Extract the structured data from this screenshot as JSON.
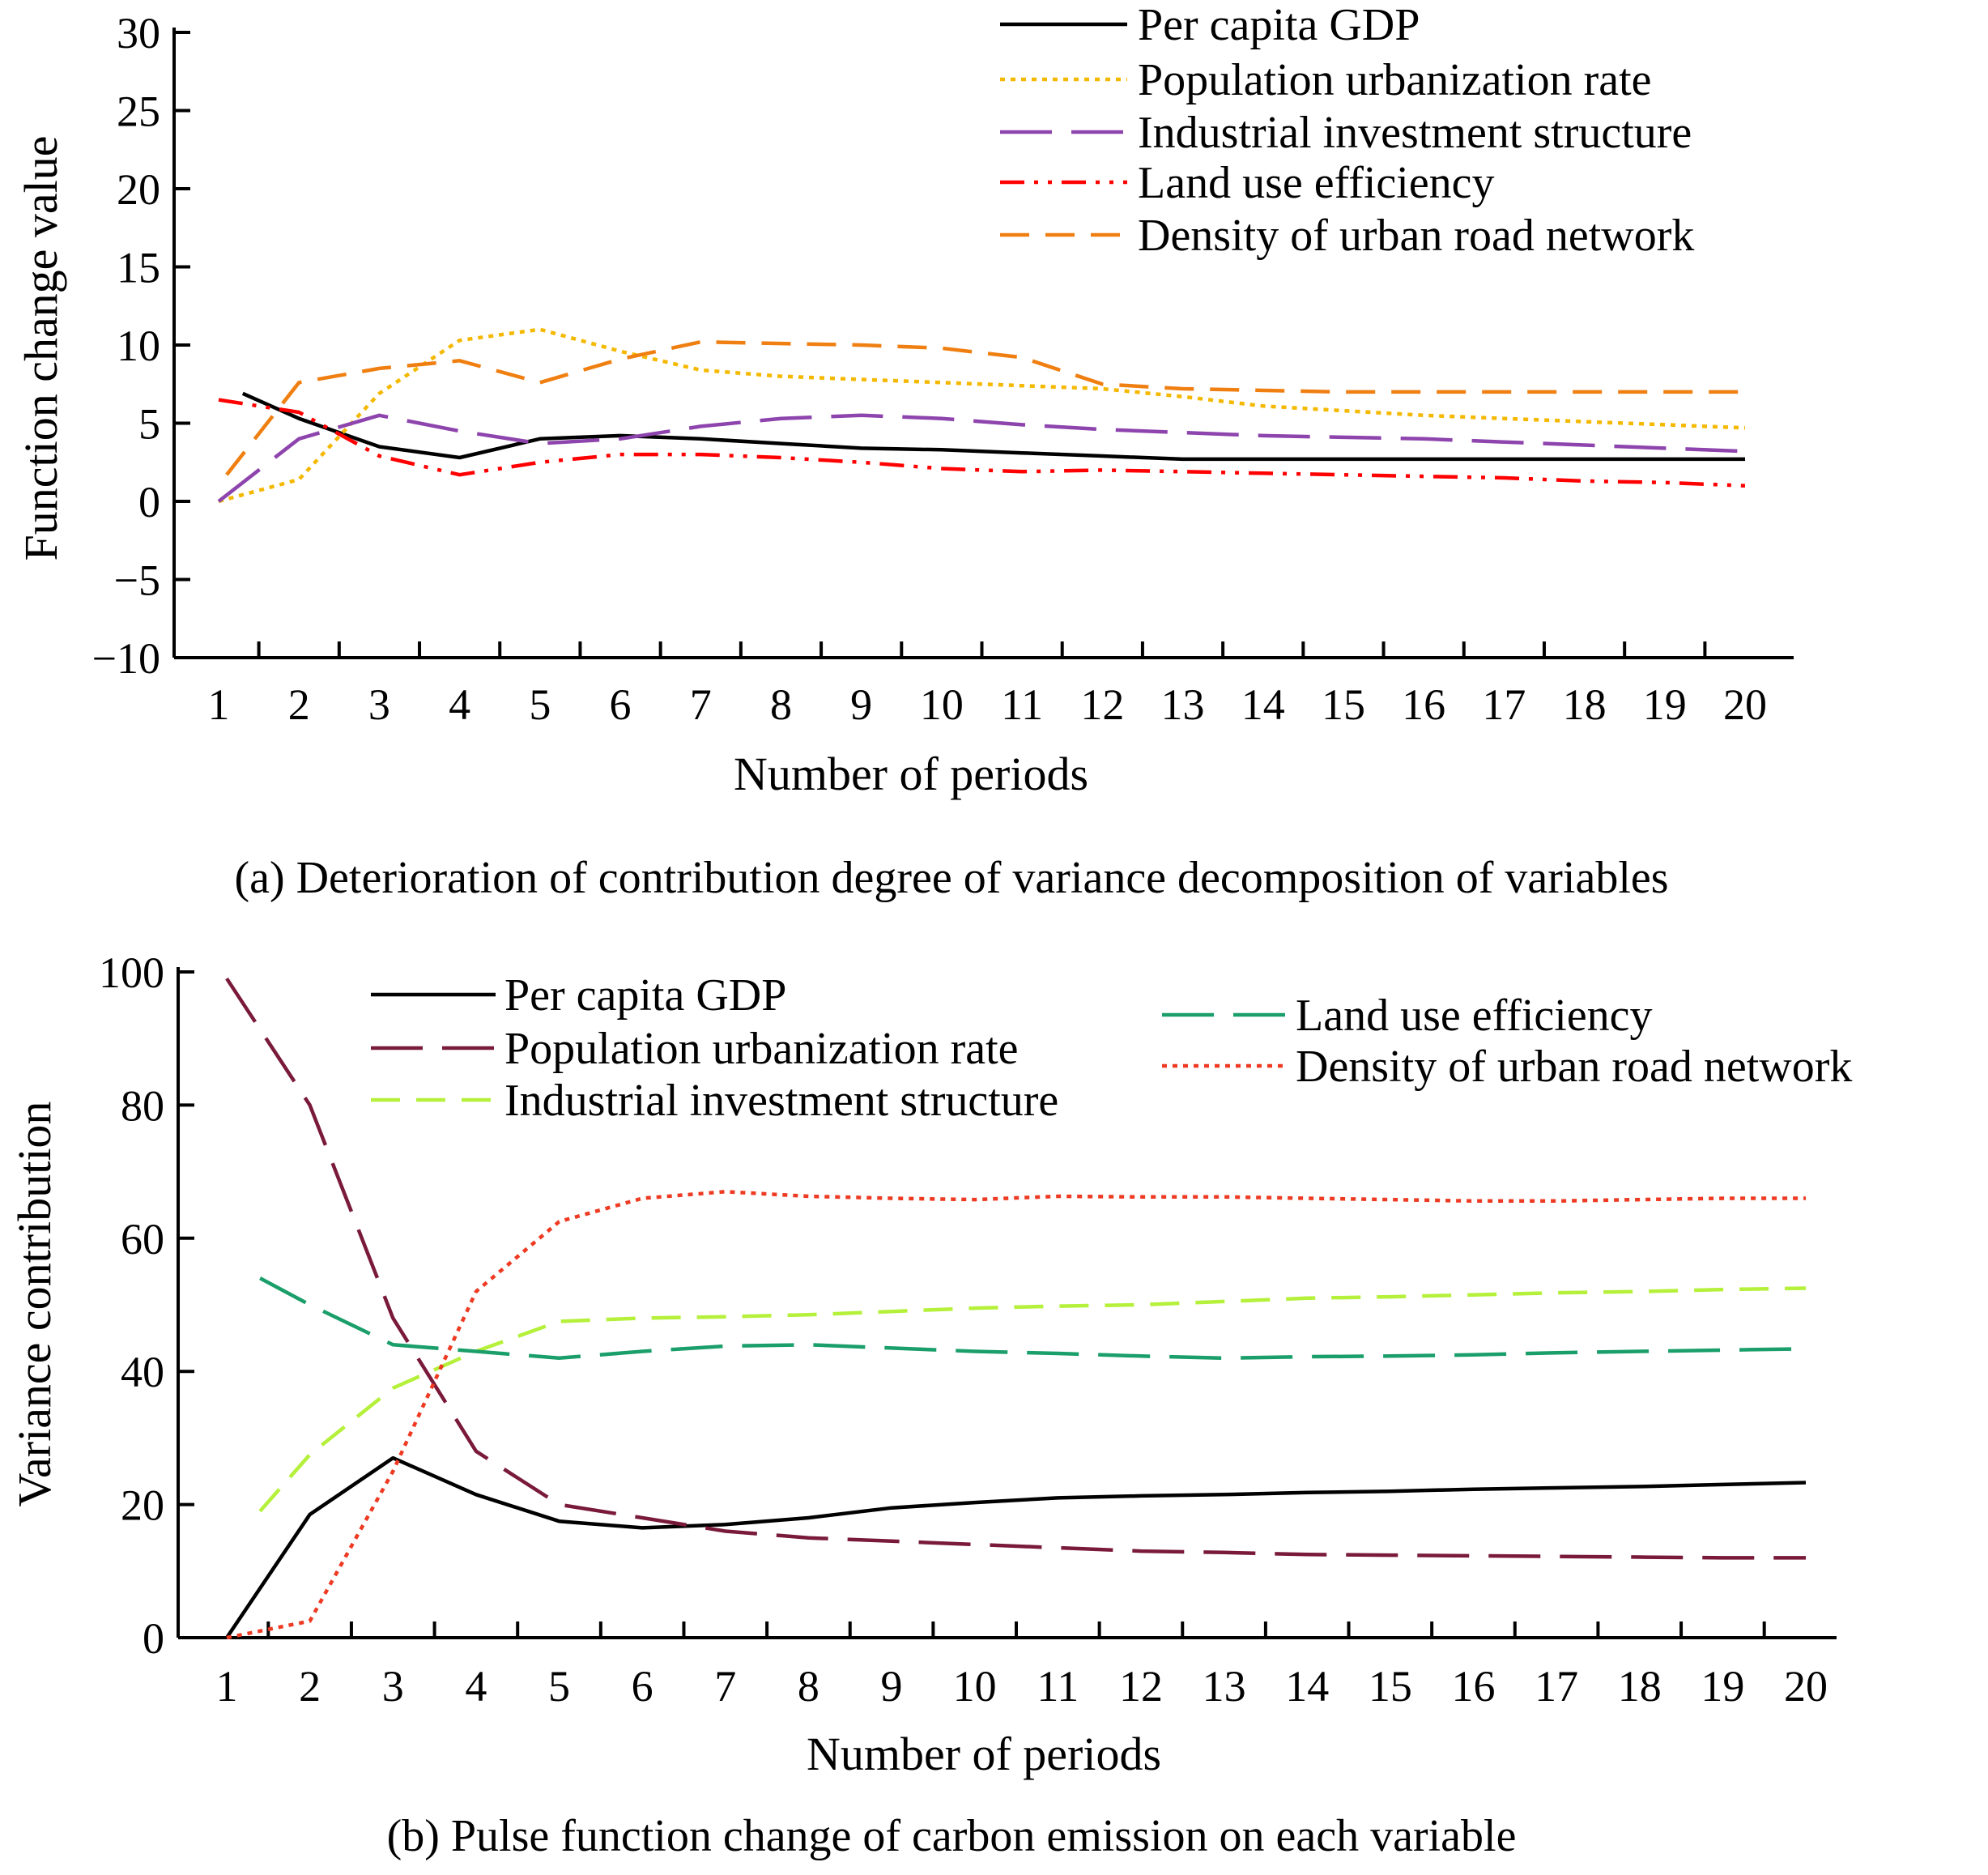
{
  "chart_data": [
    {
      "id": "a",
      "type": "line",
      "caption": "(a) Deterioration of contribution degree of variance decomposition of variables",
      "title": "",
      "xlabel": "Number of periods",
      "ylabel": "Function change value",
      "categories": [
        "1",
        "2",
        "3",
        "4",
        "5",
        "6",
        "7",
        "8",
        "9",
        "10",
        "11",
        "12",
        "13",
        "14",
        "15",
        "16",
        "17",
        "18",
        "19",
        "20"
      ],
      "yticks": [
        "30",
        "25",
        "20",
        "15",
        "10",
        "5",
        "0",
        "−5",
        "−10"
      ],
      "ylim": [
        -10,
        30
      ],
      "legend_position": "top-right",
      "series": [
        {
          "name": "Per capita GDP",
          "color": "#000000",
          "dash": "solid",
          "x": [
            1.3,
            2,
            3,
            4,
            5,
            6,
            7,
            8,
            9,
            10,
            11,
            12,
            13,
            14,
            15,
            16,
            17,
            18,
            19,
            20
          ],
          "values": [
            6.9,
            5.3,
            3.5,
            2.8,
            4.0,
            4.2,
            4.0,
            3.7,
            3.4,
            3.3,
            3.1,
            2.9,
            2.7,
            2.7,
            2.7,
            2.7,
            2.7,
            2.7,
            2.7,
            2.7
          ]
        },
        {
          "name": "Population urbanization rate",
          "color": "#f5b800",
          "dash": "dot",
          "x": [
            1,
            2,
            3,
            4,
            5,
            6,
            7,
            8,
            9,
            10,
            11,
            12,
            13,
            14,
            15,
            16,
            17,
            18,
            19,
            20
          ],
          "values": [
            0.0,
            1.4,
            6.9,
            10.3,
            11.0,
            9.6,
            8.4,
            8.0,
            7.8,
            7.6,
            7.4,
            7.2,
            6.7,
            6.1,
            5.8,
            5.5,
            5.3,
            5.1,
            4.9,
            4.7
          ]
        },
        {
          "name": "Industrial investment structure",
          "color": "#8e44ad",
          "dash": "longdash",
          "x": [
            1,
            2,
            3,
            4,
            5,
            6,
            7,
            8,
            9,
            10,
            11,
            12,
            13,
            14,
            15,
            16,
            17,
            18,
            19,
            20
          ],
          "values": [
            0.0,
            4.0,
            5.5,
            4.5,
            3.7,
            4.0,
            4.8,
            5.3,
            5.5,
            5.3,
            4.9,
            4.6,
            4.4,
            4.2,
            4.1,
            4.0,
            3.8,
            3.6,
            3.4,
            3.2
          ]
        },
        {
          "name": "Land use efficiency",
          "color": "#ff0000",
          "dash": "dashdotdot",
          "x": [
            1,
            2,
            3,
            4,
            5,
            6,
            7,
            8,
            9,
            10,
            11,
            12,
            13,
            14,
            15,
            16,
            17,
            18,
            19,
            20
          ],
          "values": [
            6.5,
            5.7,
            2.9,
            1.7,
            2.5,
            3.0,
            3.0,
            2.8,
            2.5,
            2.1,
            1.9,
            2.0,
            1.9,
            1.8,
            1.7,
            1.6,
            1.5,
            1.3,
            1.2,
            1.0
          ]
        },
        {
          "name": "Density of urban road network",
          "color": "#f07f12",
          "dash": "dash",
          "x": [
            1.1,
            2,
            3,
            4,
            5,
            6,
            7,
            8,
            9,
            10,
            11,
            12,
            13,
            14,
            15,
            16,
            17,
            18,
            19,
            20
          ],
          "values": [
            1.7,
            7.6,
            8.5,
            9.0,
            7.6,
            9.1,
            10.2,
            10.1,
            10.0,
            9.8,
            9.2,
            7.5,
            7.2,
            7.1,
            7.0,
            7.0,
            7.0,
            7.0,
            7.0,
            7.0
          ]
        }
      ]
    },
    {
      "id": "b",
      "type": "line",
      "caption": "(b) Pulse function change of carbon emission on each variable",
      "title": "",
      "xlabel": "Number of periods",
      "ylabel": "Variance contribution",
      "categories": [
        "1",
        "2",
        "3",
        "4",
        "5",
        "6",
        "7",
        "8",
        "9",
        "10",
        "11",
        "12",
        "13",
        "14",
        "15",
        "16",
        "17",
        "18",
        "19",
        "20"
      ],
      "yticks": [
        "100",
        "80",
        "60",
        "40",
        "20",
        "0"
      ],
      "ylim": [
        0,
        100
      ],
      "legend_position": "top",
      "series": [
        {
          "name": "Per capita GDP",
          "color": "#000000",
          "dash": "solid",
          "x": [
            1,
            2,
            3,
            4,
            5,
            6,
            7,
            8,
            9,
            10,
            11,
            12,
            13,
            14,
            15,
            16,
            17,
            18,
            19,
            20
          ],
          "values": [
            0,
            18.5,
            27.0,
            21.5,
            17.5,
            16.5,
            17.0,
            18.0,
            19.5,
            20.3,
            21.0,
            21.3,
            21.5,
            21.8,
            22.0,
            22.3,
            22.5,
            22.7,
            23.0,
            23.3
          ]
        },
        {
          "name": "Population urbanization rate",
          "color": "#7a1a3a",
          "dash": "longdash",
          "x": [
            1,
            2,
            3,
            4,
            5,
            6,
            7,
            8,
            9,
            10,
            11,
            12,
            13,
            14,
            15,
            16,
            17,
            18,
            19,
            20
          ],
          "values": [
            99.0,
            80.0,
            48.0,
            28.0,
            20.0,
            18.0,
            16.0,
            15.0,
            14.5,
            14.0,
            13.5,
            13.0,
            12.8,
            12.5,
            12.4,
            12.3,
            12.2,
            12.1,
            12.0,
            12.0
          ]
        },
        {
          "name": "Industrial investment structure",
          "color": "#b5f03a",
          "dash": "dash",
          "x": [
            1.4,
            2,
            3,
            4,
            5,
            6,
            7,
            8,
            9,
            10,
            11,
            12,
            13,
            14,
            15,
            16,
            17,
            18,
            19,
            20
          ],
          "values": [
            19.0,
            27.5,
            37.5,
            43.0,
            47.5,
            48.0,
            48.2,
            48.5,
            49.0,
            49.5,
            49.8,
            50.0,
            50.5,
            51.0,
            51.2,
            51.5,
            51.8,
            52.0,
            52.3,
            52.5
          ]
        },
        {
          "name": "Land use efficiency",
          "color": "#1a9e6a",
          "dash": "longdash",
          "x": [
            1.4,
            2,
            3,
            4,
            5,
            6,
            7,
            8,
            9,
            10,
            11,
            12,
            13,
            14,
            15,
            16,
            17,
            18,
            19,
            20
          ],
          "values": [
            54.0,
            50.0,
            44.0,
            43.0,
            42.0,
            43.0,
            43.8,
            44.0,
            43.5,
            43.0,
            42.7,
            42.3,
            42.0,
            42.2,
            42.3,
            42.5,
            42.8,
            43.0,
            43.2,
            43.4
          ]
        },
        {
          "name": "Density of urban road network",
          "color": "#ee3a22",
          "dash": "dot",
          "x": [
            1,
            2,
            3,
            4,
            5,
            6,
            7,
            8,
            9,
            10,
            11,
            12,
            13,
            14,
            15,
            16,
            17,
            18,
            19,
            20
          ],
          "values": [
            0.0,
            2.5,
            25.0,
            52.0,
            62.5,
            66.0,
            67.0,
            66.3,
            66.0,
            65.8,
            66.3,
            66.2,
            66.2,
            66.0,
            65.8,
            65.6,
            65.6,
            65.8,
            66.0,
            66.0
          ]
        }
      ]
    }
  ]
}
